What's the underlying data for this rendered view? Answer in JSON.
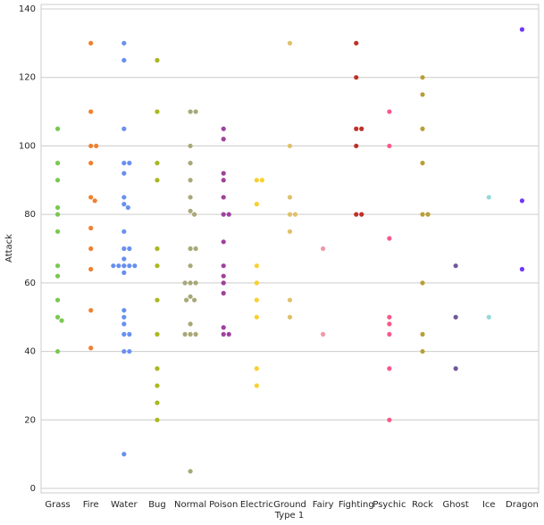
{
  "chart_data": {
    "type": "swarm",
    "x_label": "Type 1",
    "y_label": "Attack",
    "categories": [
      "Grass",
      "Fire",
      "Water",
      "Bug",
      "Normal",
      "Poison",
      "Electric",
      "Ground",
      "Fairy",
      "Fighting",
      "Psychic",
      "Rock",
      "Ghost",
      "Ice",
      "Dragon"
    ],
    "colors": [
      "#78C850",
      "#F08030",
      "#6890F0",
      "#A8B820",
      "#A8A878",
      "#A040A0",
      "#F8D030",
      "#E0C068",
      "#EE99AC",
      "#C03028",
      "#F85888",
      "#B8A038",
      "#705898",
      "#98D8D8",
      "#7038F8"
    ],
    "values": [
      [
        105,
        95,
        90,
        82,
        80,
        75,
        65,
        62,
        55,
        50,
        49,
        40
      ],
      [
        130,
        110,
        100,
        100,
        95,
        85,
        84,
        76,
        70,
        64,
        52,
        41
      ],
      [
        130,
        125,
        105,
        95,
        95,
        92,
        85,
        83,
        82,
        75,
        70,
        70,
        67,
        65,
        65,
        65,
        65,
        65,
        65,
        63,
        52,
        50,
        48,
        45,
        45,
        40,
        40,
        10
      ],
      [
        125,
        110,
        95,
        90,
        70,
        65,
        55,
        45,
        35,
        30,
        25,
        20
      ],
      [
        110,
        110,
        100,
        95,
        90,
        85,
        81,
        80,
        70,
        70,
        65,
        60,
        60,
        60,
        56,
        55,
        55,
        48,
        45,
        45,
        45,
        5
      ],
      [
        105,
        102,
        92,
        90,
        85,
        80,
        80,
        72,
        65,
        62,
        60,
        57,
        47,
        45,
        45
      ],
      [
        90,
        90,
        83,
        65,
        60,
        55,
        50,
        35,
        30
      ],
      [
        130,
        100,
        85,
        80,
        80,
        75,
        55,
        50
      ],
      [
        70,
        45
      ],
      [
        130,
        120,
        105,
        105,
        100,
        80,
        80
      ],
      [
        110,
        100,
        73,
        50,
        48,
        45,
        35,
        20
      ],
      [
        120,
        115,
        105,
        95,
        80,
        80,
        60,
        45,
        40
      ],
      [
        65,
        50,
        35
      ],
      [
        85,
        50
      ],
      [
        134,
        84,
        64
      ]
    ],
    "ylim": [
      -1.3,
      141.3
    ],
    "yticks": [
      0,
      20,
      40,
      60,
      80,
      100,
      120,
      140
    ],
    "grid": true
  }
}
